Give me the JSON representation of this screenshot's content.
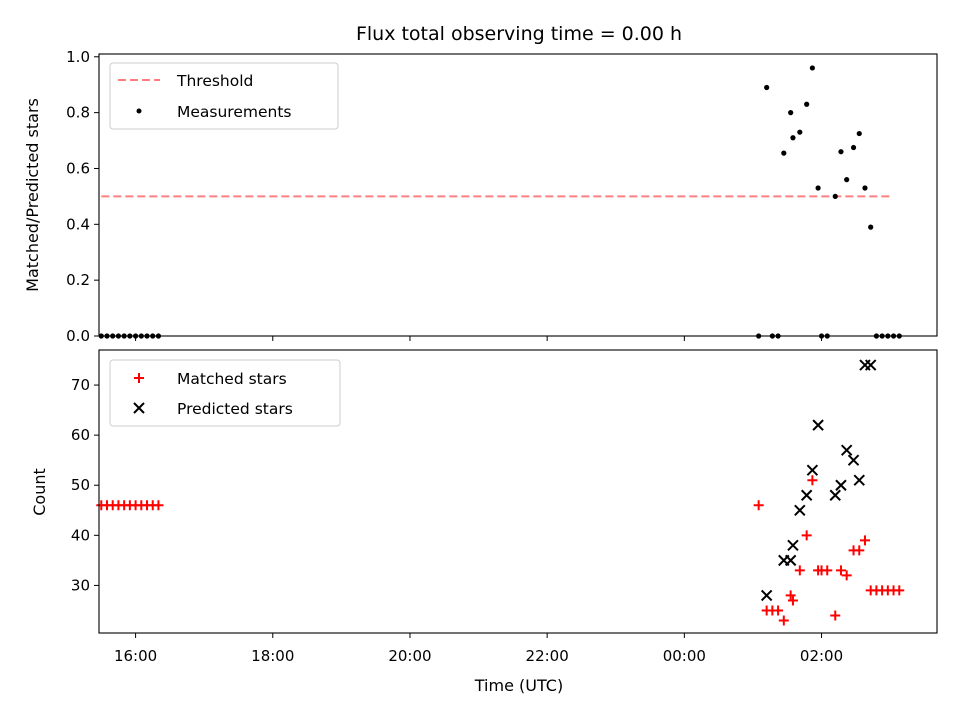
{
  "title": "Flux total observing time = 0.00 h",
  "chart_data": [
    {
      "type": "scatter",
      "ylabel": "Matched/Predicted stars",
      "xlim": [
        "15:28",
        "27:41"
      ],
      "ylim": [
        0,
        1.01
      ],
      "yticks": [
        "0.0",
        "0.2",
        "0.4",
        "0.6",
        "0.8",
        "1.0"
      ],
      "threshold": {
        "name": "Threshold",
        "y": 0.5,
        "x_range": [
          "15:30",
          "27:00"
        ],
        "color": "#ff7f7f"
      },
      "series": [
        {
          "name": "Measurements",
          "color": "#000000",
          "points": [
            [
              "15:30",
              0
            ],
            [
              "15:35",
              0
            ],
            [
              "15:40",
              0
            ],
            [
              "15:45",
              0
            ],
            [
              "15:50",
              0
            ],
            [
              "15:55",
              0
            ],
            [
              "16:00",
              0
            ],
            [
              "16:05",
              0
            ],
            [
              "16:10",
              0
            ],
            [
              "16:15",
              0
            ],
            [
              "16:20",
              0
            ],
            [
              "25:05",
              0
            ],
            [
              "25:12",
              0.89
            ],
            [
              "25:17",
              0
            ],
            [
              "25:22",
              0
            ],
            [
              "25:27",
              0.655
            ],
            [
              "25:33",
              0.8
            ],
            [
              "25:35",
              0.71
            ],
            [
              "25:41",
              0.73
            ],
            [
              "25:47",
              0.83
            ],
            [
              "25:52",
              0.96
            ],
            [
              "25:57",
              0.53
            ],
            [
              "26:00",
              0
            ],
            [
              "26:05",
              0
            ],
            [
              "26:12",
              0.5
            ],
            [
              "26:17",
              0.66
            ],
            [
              "26:22",
              0.56
            ],
            [
              "26:28",
              0.675
            ],
            [
              "26:33",
              0.725
            ],
            [
              "26:38",
              0.53
            ],
            [
              "26:43",
              0.39
            ],
            [
              "26:48",
              0
            ],
            [
              "26:53",
              0
            ],
            [
              "26:58",
              0
            ],
            [
              "27:03",
              0
            ],
            [
              "27:08",
              0
            ]
          ]
        }
      ]
    },
    {
      "type": "scatter",
      "xlabel": "Time (UTC)",
      "ylabel": "Count",
      "xlim": [
        "15:28",
        "27:41"
      ],
      "ylim": [
        20.5,
        77
      ],
      "yticks": [
        "30",
        "40",
        "50",
        "60",
        "70"
      ],
      "xticks": [
        "16:00",
        "18:00",
        "20:00",
        "22:00",
        "00:00",
        "02:00"
      ],
      "series": [
        {
          "name": "Matched stars",
          "marker": "plus",
          "color": "#ff0000",
          "points": [
            [
              "15:30",
              46
            ],
            [
              "15:35",
              46
            ],
            [
              "15:40",
              46
            ],
            [
              "15:45",
              46
            ],
            [
              "15:50",
              46
            ],
            [
              "15:55",
              46
            ],
            [
              "16:00",
              46
            ],
            [
              "16:05",
              46
            ],
            [
              "16:10",
              46
            ],
            [
              "16:15",
              46
            ],
            [
              "16:20",
              46
            ],
            [
              "25:05",
              46
            ],
            [
              "25:12",
              25
            ],
            [
              "25:17",
              25
            ],
            [
              "25:22",
              25
            ],
            [
              "25:27",
              23
            ],
            [
              "25:33",
              28
            ],
            [
              "25:35",
              27
            ],
            [
              "25:41",
              33
            ],
            [
              "25:47",
              40
            ],
            [
              "25:52",
              51
            ],
            [
              "25:57",
              33
            ],
            [
              "26:00",
              33
            ],
            [
              "26:05",
              33
            ],
            [
              "26:12",
              24
            ],
            [
              "26:17",
              33
            ],
            [
              "26:22",
              32
            ],
            [
              "26:28",
              37
            ],
            [
              "26:33",
              37
            ],
            [
              "26:38",
              39
            ],
            [
              "26:43",
              29
            ],
            [
              "26:48",
              29
            ],
            [
              "26:53",
              29
            ],
            [
              "26:58",
              29
            ],
            [
              "27:03",
              29
            ],
            [
              "27:08",
              29
            ]
          ]
        },
        {
          "name": "Predicted stars",
          "marker": "x",
          "color": "#000000",
          "points": [
            [
              "25:12",
              28
            ],
            [
              "25:27",
              35
            ],
            [
              "25:33",
              35
            ],
            [
              "25:35",
              38
            ],
            [
              "25:41",
              45
            ],
            [
              "25:47",
              48
            ],
            [
              "25:52",
              53
            ],
            [
              "25:57",
              62
            ],
            [
              "26:12",
              48
            ],
            [
              "26:17",
              50
            ],
            [
              "26:22",
              57
            ],
            [
              "26:28",
              55
            ],
            [
              "26:33",
              51
            ],
            [
              "26:38",
              74
            ],
            [
              "26:43",
              74
            ]
          ]
        }
      ]
    }
  ]
}
